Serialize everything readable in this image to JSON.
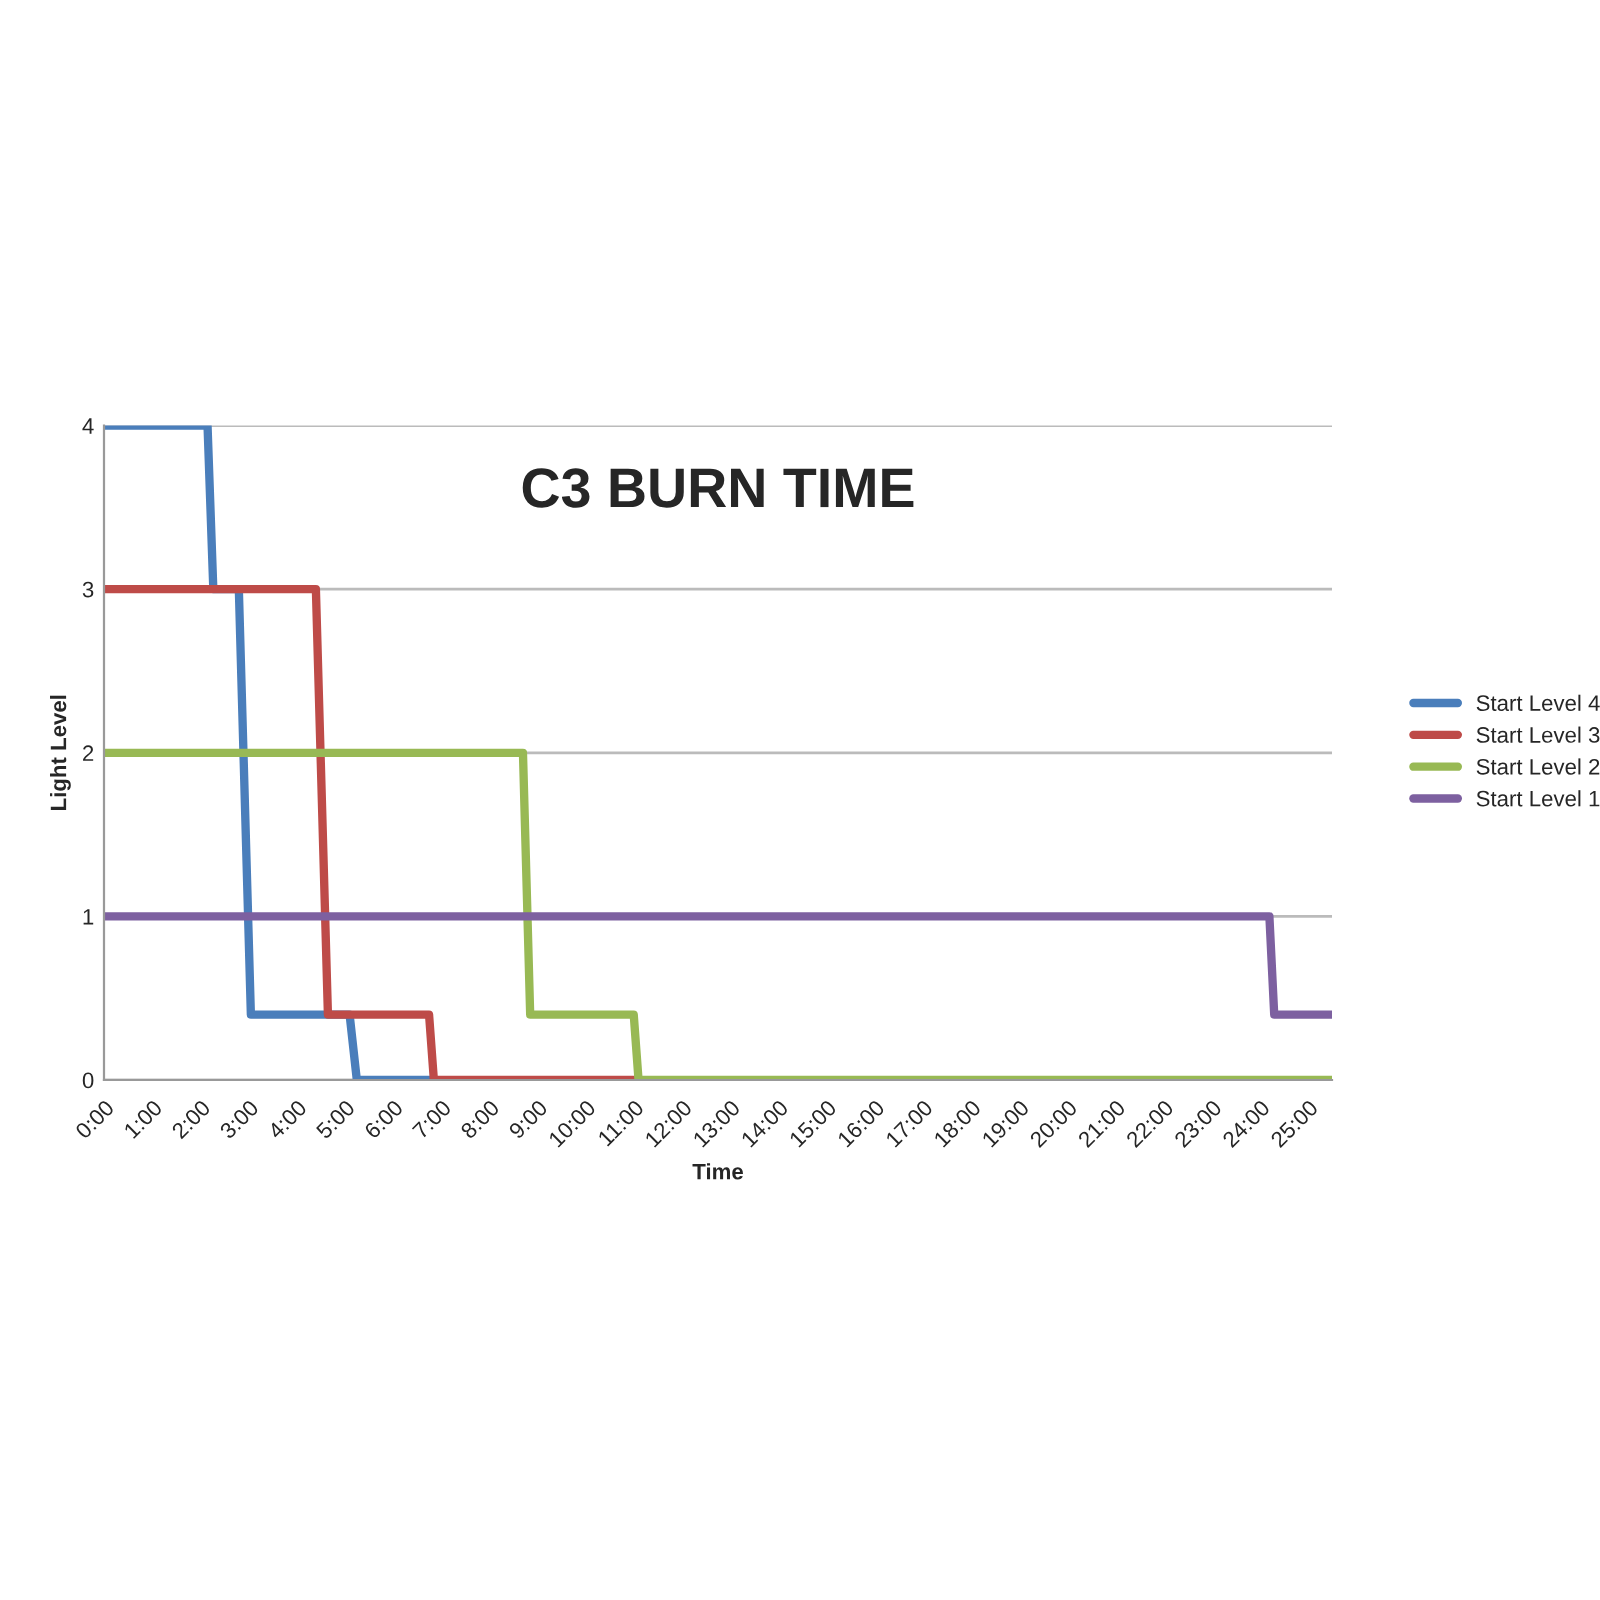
{
  "chart_data": {
    "type": "line",
    "title": "C3 BURN TIME",
    "xlabel": "Time",
    "ylabel": "Light Level",
    "series": [
      {
        "name": "Start Level 4",
        "color": "#4a7ebb",
        "x": [
          0,
          2.15,
          2.27,
          2.8,
          3.05,
          5.1,
          5.25,
          6.85
        ],
        "values": [
          4,
          4,
          3,
          3,
          0.4,
          0.4,
          0,
          0
        ]
      },
      {
        "name": "Start Level 3",
        "color": "#be4b48",
        "x": [
          0,
          4.4,
          4.65,
          6.75,
          6.85,
          11.1
        ],
        "values": [
          3,
          3,
          0.4,
          0.4,
          0,
          0
        ]
      },
      {
        "name": "Start Level 2",
        "color": "#98b954",
        "x": [
          0,
          8.7,
          8.85,
          11,
          11.1,
          25.5
        ],
        "values": [
          2,
          2,
          0.4,
          0.4,
          0,
          0
        ]
      },
      {
        "name": "Start Level 1",
        "color": "#7d60a0",
        "x": [
          0,
          24.2,
          24.3,
          25.5
        ],
        "values": [
          1,
          1,
          0.4,
          0.4
        ]
      }
    ],
    "xlim": [
      0,
      25.5
    ],
    "xticks": [
      {
        "value": 0,
        "label": "0:00"
      },
      {
        "value": 1,
        "label": "1:00"
      },
      {
        "value": 2,
        "label": "2:00"
      },
      {
        "value": 3,
        "label": "3:00"
      },
      {
        "value": 4,
        "label": "4:00"
      },
      {
        "value": 5,
        "label": "5:00"
      },
      {
        "value": 6,
        "label": "6:00"
      },
      {
        "value": 7,
        "label": "7:00"
      },
      {
        "value": 8,
        "label": "8:00"
      },
      {
        "value": 9,
        "label": "9:00"
      },
      {
        "value": 10,
        "label": "10:00"
      },
      {
        "value": 11,
        "label": "11:00"
      },
      {
        "value": 12,
        "label": "12:00"
      },
      {
        "value": 13,
        "label": "13:00"
      },
      {
        "value": 14,
        "label": "14:00"
      },
      {
        "value": 15,
        "label": "15:00"
      },
      {
        "value": 16,
        "label": "16:00"
      },
      {
        "value": 17,
        "label": "17:00"
      },
      {
        "value": 18,
        "label": "18:00"
      },
      {
        "value": 19,
        "label": "19:00"
      },
      {
        "value": 20,
        "label": "20:00"
      },
      {
        "value": 21,
        "label": "21:00"
      },
      {
        "value": 22,
        "label": "22:00"
      },
      {
        "value": 23,
        "label": "23:00"
      },
      {
        "value": 24,
        "label": "24:00"
      },
      {
        "value": 25,
        "label": "25:00"
      }
    ],
    "ylim": [
      0,
      4
    ],
    "yticks": [
      0,
      1,
      2,
      3,
      4
    ],
    "grid": "y",
    "legend": "right",
    "marker": "none",
    "line_style": "solid"
  }
}
